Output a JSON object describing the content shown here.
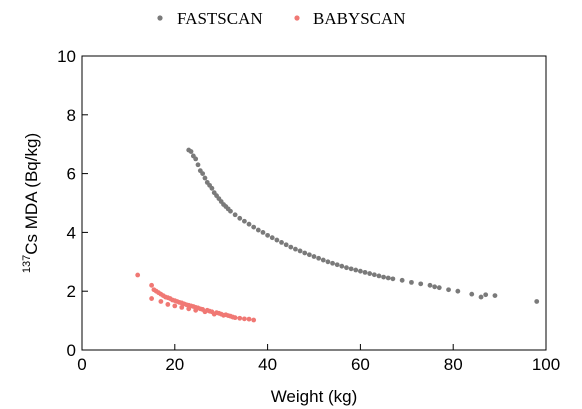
{
  "chart_data": {
    "type": "scatter",
    "xlabel": "Weight (kg)",
    "ylabel_sup": "137",
    "ylabel_main": "Cs MDA (Bq/kg)",
    "xlim": [
      0,
      100
    ],
    "ylim": [
      0,
      10
    ],
    "xticks": [
      "0",
      "20",
      "40",
      "60",
      "80",
      "100"
    ],
    "yticks": [
      "0",
      "2",
      "4",
      "6",
      "8",
      "10"
    ],
    "grid": false,
    "legend_position": "top-center",
    "series": [
      {
        "name": "FASTSCAN",
        "color": "#7a7a7a",
        "points": [
          [
            23,
            6.8
          ],
          [
            23.5,
            6.75
          ],
          [
            24,
            6.6
          ],
          [
            24.5,
            6.5
          ],
          [
            25,
            6.3
          ],
          [
            25.5,
            6.1
          ],
          [
            26,
            6.0
          ],
          [
            26.5,
            5.85
          ],
          [
            27,
            5.7
          ],
          [
            27.5,
            5.6
          ],
          [
            28,
            5.5
          ],
          [
            28.5,
            5.35
          ],
          [
            29,
            5.25
          ],
          [
            29.5,
            5.15
          ],
          [
            30,
            5.05
          ],
          [
            30.5,
            4.95
          ],
          [
            31,
            4.88
          ],
          [
            31.5,
            4.8
          ],
          [
            32,
            4.72
          ],
          [
            33,
            4.6
          ],
          [
            34,
            4.48
          ],
          [
            35,
            4.38
          ],
          [
            36,
            4.28
          ],
          [
            37,
            4.18
          ],
          [
            38,
            4.08
          ],
          [
            39,
            4.0
          ],
          [
            40,
            3.9
          ],
          [
            41,
            3.82
          ],
          [
            42,
            3.74
          ],
          [
            43,
            3.66
          ],
          [
            44,
            3.58
          ],
          [
            45,
            3.5
          ],
          [
            46,
            3.43
          ],
          [
            47,
            3.37
          ],
          [
            48,
            3.3
          ],
          [
            49,
            3.24
          ],
          [
            50,
            3.18
          ],
          [
            51,
            3.12
          ],
          [
            52,
            3.06
          ],
          [
            53,
            3.0
          ],
          [
            54,
            2.95
          ],
          [
            55,
            2.9
          ],
          [
            56,
            2.85
          ],
          [
            57,
            2.8
          ],
          [
            58,
            2.76
          ],
          [
            59,
            2.72
          ],
          [
            60,
            2.68
          ],
          [
            61,
            2.64
          ],
          [
            62,
            2.6
          ],
          [
            63,
            2.56
          ],
          [
            64,
            2.52
          ],
          [
            65,
            2.48
          ],
          [
            66,
            2.45
          ],
          [
            67,
            2.42
          ],
          [
            69,
            2.37
          ],
          [
            71,
            2.3
          ],
          [
            73,
            2.25
          ],
          [
            75,
            2.2
          ],
          [
            76,
            2.15
          ],
          [
            77,
            2.12
          ],
          [
            79,
            2.05
          ],
          [
            81,
            2.0
          ],
          [
            84,
            1.9
          ],
          [
            86,
            1.8
          ],
          [
            87,
            1.88
          ],
          [
            89,
            1.85
          ],
          [
            98,
            1.65
          ]
        ]
      },
      {
        "name": "BABYSCAN",
        "color": "#f07874",
        "points": [
          [
            12,
            2.55
          ],
          [
            15,
            2.2
          ],
          [
            15,
            1.75
          ],
          [
            15.5,
            2.05
          ],
          [
            16,
            2.0
          ],
          [
            16.5,
            1.95
          ],
          [
            17,
            1.9
          ],
          [
            17,
            1.65
          ],
          [
            17.5,
            1.85
          ],
          [
            18,
            1.8
          ],
          [
            18.5,
            1.55
          ],
          [
            18.5,
            1.78
          ],
          [
            19,
            1.75
          ],
          [
            19.5,
            1.7
          ],
          [
            20,
            1.68
          ],
          [
            20,
            1.5
          ],
          [
            20.5,
            1.65
          ],
          [
            21,
            1.62
          ],
          [
            21.5,
            1.45
          ],
          [
            21.5,
            1.6
          ],
          [
            22,
            1.57
          ],
          [
            22.5,
            1.54
          ],
          [
            23,
            1.52
          ],
          [
            23,
            1.4
          ],
          [
            23.5,
            1.5
          ],
          [
            24,
            1.48
          ],
          [
            24.5,
            1.45
          ],
          [
            24.5,
            1.35
          ],
          [
            25,
            1.43
          ],
          [
            25.5,
            1.4
          ],
          [
            26,
            1.38
          ],
          [
            26.5,
            1.3
          ],
          [
            27,
            1.35
          ],
          [
            27.5,
            1.32
          ],
          [
            28,
            1.3
          ],
          [
            28.5,
            1.22
          ],
          [
            29,
            1.27
          ],
          [
            29.5,
            1.25
          ],
          [
            30,
            1.22
          ],
          [
            30.5,
            1.18
          ],
          [
            31,
            1.2
          ],
          [
            31.5,
            1.17
          ],
          [
            32,
            1.15
          ],
          [
            32.5,
            1.12
          ],
          [
            33,
            1.1
          ],
          [
            34,
            1.08
          ],
          [
            35,
            1.06
          ],
          [
            36,
            1.05
          ],
          [
            37,
            1.02
          ]
        ]
      }
    ]
  }
}
